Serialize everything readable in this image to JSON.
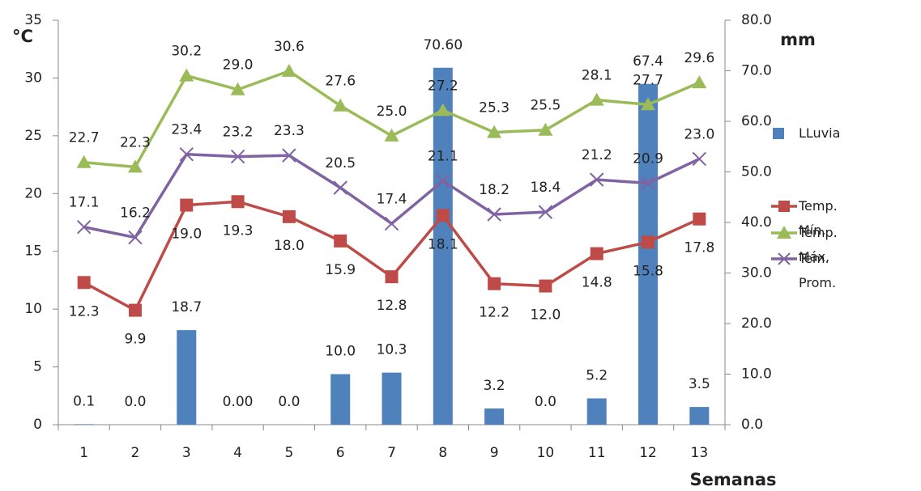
{
  "chart_data": {
    "type": "combo",
    "y_label": "°C",
    "y2_label": "mm",
    "x_label": "Semanas",
    "categories": [
      "1",
      "2",
      "3",
      "4",
      "5",
      "6",
      "7",
      "8",
      "9",
      "10",
      "11",
      "12",
      "13"
    ],
    "ylim": [
      0,
      35
    ],
    "yticks": [
      0,
      5,
      10,
      15,
      20,
      25,
      30,
      35
    ],
    "y2lim": [
      0,
      80
    ],
    "y2ticks": [
      {
        "value": 0,
        "label": "0.0"
      },
      {
        "value": 10,
        "label": "10.0"
      },
      {
        "value": 20,
        "label": "20.0"
      },
      {
        "value": 30,
        "label": "30.0"
      },
      {
        "value": 40,
        "label": "40.0"
      },
      {
        "value": 50,
        "label": "50.0"
      },
      {
        "value": 60,
        "label": "60.0"
      },
      {
        "value": 70,
        "label": "70.0"
      },
      {
        "value": 80,
        "label": "80.0"
      }
    ],
    "grid": false,
    "legend": "right",
    "series": [
      {
        "name": "LLuvia",
        "type": "bar",
        "axis": "y2",
        "color": "#4f81bd",
        "values": [
          0.1,
          0,
          18.7,
          0,
          0,
          10,
          10.3,
          70.6,
          3.2,
          0,
          5.2,
          67.4,
          3.5
        ],
        "value_labels": [
          "0.1",
          "0.0",
          "18.7",
          "0.00",
          "0.0",
          "10.0",
          "10.3",
          "70.60",
          "3.2",
          "0.0",
          "5.2",
          "67.4",
          "3.5"
        ]
      },
      {
        "name": "Temp. Mín.",
        "type": "line",
        "marker": "square",
        "color": "#be4b48",
        "values": [
          12.3,
          9.9,
          19.0,
          19.3,
          18.0,
          15.9,
          12.8,
          18.1,
          12.2,
          12.0,
          14.8,
          15.8,
          17.8
        ],
        "value_labels": [
          "12.3",
          "9.9",
          "19.0",
          "19.3",
          "18.0",
          "15.9",
          "12.8",
          "18.1",
          "12.2",
          "12.0",
          "14.8",
          "15.8",
          "17.8"
        ]
      },
      {
        "name": "Temp. Máx.",
        "type": "line",
        "marker": "triangle",
        "color": "#9bbb59",
        "values": [
          22.7,
          22.3,
          30.2,
          29.0,
          30.6,
          27.6,
          25.0,
          27.2,
          25.3,
          25.5,
          28.1,
          27.7,
          29.6
        ],
        "value_labels": [
          "22.7",
          "22.3",
          "30.2",
          "29.0",
          "30.6",
          "27.6",
          "25.0",
          "27.2",
          "25.3",
          "25.5",
          "28.1",
          "27.7",
          "29.6"
        ]
      },
      {
        "name": "Tem. Prom.",
        "type": "line",
        "marker": "x",
        "color": "#7f63a2",
        "values": [
          17.1,
          16.2,
          23.4,
          23.2,
          23.3,
          20.5,
          17.4,
          21.1,
          18.2,
          18.4,
          21.2,
          20.9,
          23.0
        ],
        "value_labels": [
          "17.1",
          "16.2",
          "23.4",
          "23.2",
          "23.3",
          "20.5",
          "17.4",
          "21.1",
          "18.2",
          "18.4",
          "21.2",
          "20.9",
          "23.0"
        ]
      }
    ]
  }
}
